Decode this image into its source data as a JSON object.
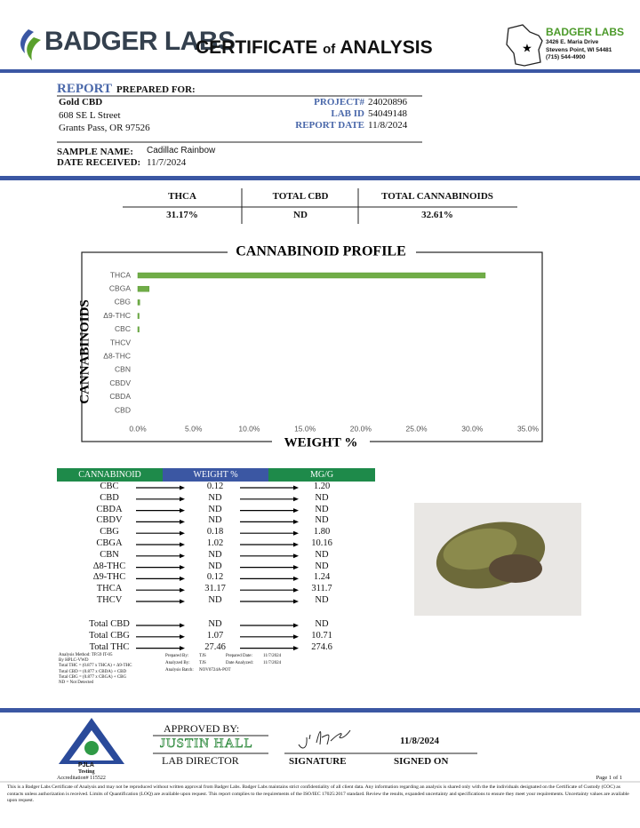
{
  "header": {
    "logo_text": "BADGER LABS",
    "title_start": "CERTIFICATE",
    "title_of": "of",
    "title_end": "ANALYSIS",
    "lab_name": "BADGER LABS",
    "lab_address": "3426 E. Maria Drive",
    "lab_city": "Stevens Point, WI 54481",
    "lab_phone": "(715) 544-4900"
  },
  "report": {
    "label_report": "REPORT",
    "label_prepared": "PREPARED FOR:",
    "client": "Gold CBD",
    "address": "608 SE L Street",
    "city": "Grants Pass, OR 97526",
    "project_label": "PROJECT#",
    "project": "24020896",
    "labid_label": "LAB ID",
    "labid": "54049148",
    "date_label": "REPORT DATE",
    "date": "11/8/2024",
    "sample_label": "SAMPLE NAME:",
    "sample": "Cadillac Rainbow",
    "received_label": "DATE RECEIVED:",
    "received": "11/7/2024"
  },
  "summary": {
    "headers": [
      "THCA",
      "TOTAL CBD",
      "TOTAL CANNABINOIDS"
    ],
    "values": [
      "31.17%",
      "ND",
      "32.61%"
    ]
  },
  "chart_data": {
    "type": "bar",
    "orientation": "horizontal",
    "title": "CANNABINOID PROFILE",
    "x_label": "WEIGHT %",
    "y_label": "CANNABINOIDS",
    "categories": [
      "THCA",
      "CBGA",
      "CBG",
      "Δ9-THC",
      "CBC",
      "THCV",
      "Δ8-THC",
      "CBN",
      "CBDV",
      "CBDA",
      "CBD"
    ],
    "values": [
      31.17,
      1.02,
      0.18,
      0.12,
      0.12,
      0,
      0,
      0,
      0,
      0,
      0
    ],
    "color": "#70ad47",
    "xlim": [
      0,
      35
    ],
    "xticks": [
      {
        "value": 0,
        "label": "0.0%"
      },
      {
        "value": 5,
        "label": "5.0%"
      },
      {
        "value": 10,
        "label": "10.0%"
      },
      {
        "value": 15,
        "label": "15.0%"
      },
      {
        "value": 20,
        "label": "20.0%"
      },
      {
        "value": 25,
        "label": "25.0%"
      },
      {
        "value": 30,
        "label": "30.0%"
      },
      {
        "value": 35,
        "label": "35.0%"
      }
    ]
  },
  "table": {
    "headers": [
      "CANNABINOID",
      "WEIGHT %",
      "MG/G"
    ],
    "rows": [
      [
        "CBC",
        "0.12",
        "1.20"
      ],
      [
        "CBD",
        "ND",
        "ND"
      ],
      [
        "CBDA",
        "ND",
        "ND"
      ],
      [
        "CBDV",
        "ND",
        "ND"
      ],
      [
        "CBG",
        "0.18",
        "1.80"
      ],
      [
        "CBGA",
        "1.02",
        "10.16"
      ],
      [
        "CBN",
        "ND",
        "ND"
      ],
      [
        "Δ8-THC",
        "ND",
        "ND"
      ],
      [
        "Δ9-THC",
        "0.12",
        "1.24"
      ],
      [
        "THCA",
        "31.17",
        "311.7"
      ],
      [
        "THCV",
        "ND",
        "ND"
      ]
    ],
    "totals": [
      [
        "Total CBD",
        "ND",
        "ND"
      ],
      [
        "Total CBG",
        "1.07",
        "10.71"
      ],
      [
        "Total THC",
        "27.46",
        "274.6"
      ]
    ]
  },
  "notes": [
    "Analysis Method: TP.59 IT-05",
    "By HPLC-VWD",
    "Total THC = (0.877 x THCA) + Δ9-THC",
    "Total CBD = (0.877 x CBDA) + CBD",
    "Total CBG = (0.877 x CBGA) + CBG",
    "ND = Not Detected"
  ],
  "prep": [
    [
      "Prepared By:",
      "TJS",
      "Prepared Date:",
      "11/7/2024"
    ],
    [
      "Analyzed By:",
      "TJS",
      "Date Analyzed:",
      "11/7/2024"
    ],
    [
      "Analysis Batch:",
      "NOV0724A-POT"
    ]
  ],
  "approval": {
    "approved_by": "APPROVED BY:",
    "name": "JUSTIN HALL",
    "role": "LAB DIRECTOR",
    "signature_label": "SIGNATURE",
    "signed_date": "11/8/2024",
    "signed_on": "SIGNED ON"
  },
  "accreditation": {
    "org": "PJLA",
    "type": "Testing",
    "number": "Accreditation# 115522"
  },
  "footer": {
    "page": "Page 1 of 1",
    "disclaimer": "This is a Badger Labs Certificate of Analysis and may not be reproduced without written approval from Badger Labs. Badger Labs maintains strict confidentiality of all client data. Any information regarding an analysis is shared only with the the individuals designated on the Certificate of Custody (COC) as contacts unless authorization is received. Limits of Quantification (LOQ) are available upon request. This report complies to the requirements of the ISO/IEC 17025:2017 standard. Review the results, expanded uncertainty and specifications to ensure they meet your requirements. Uncertainty values are available upon request."
  }
}
